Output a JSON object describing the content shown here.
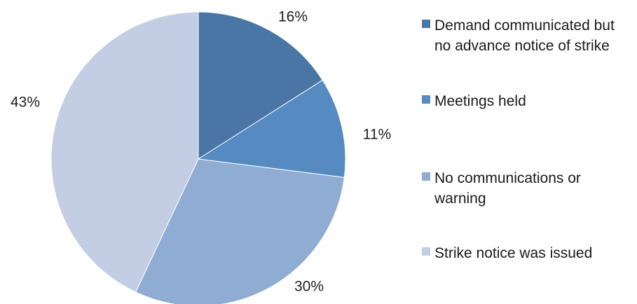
{
  "chart_data": {
    "type": "pie",
    "title": "",
    "categories": [
      "Demand communicated but no advance notice of strike",
      "Meetings held",
      "No communications or warning",
      "Strike notice was issued"
    ],
    "values": [
      16,
      11,
      30,
      43
    ],
    "data_labels": [
      "16%",
      "11%",
      "30%",
      "43%"
    ],
    "colors": [
      "#4a76a6",
      "#558bc0",
      "#8fadd3",
      "#c3cde3"
    ],
    "legend_placement": "right",
    "start_angle": "12 o'clock, clockwise"
  }
}
